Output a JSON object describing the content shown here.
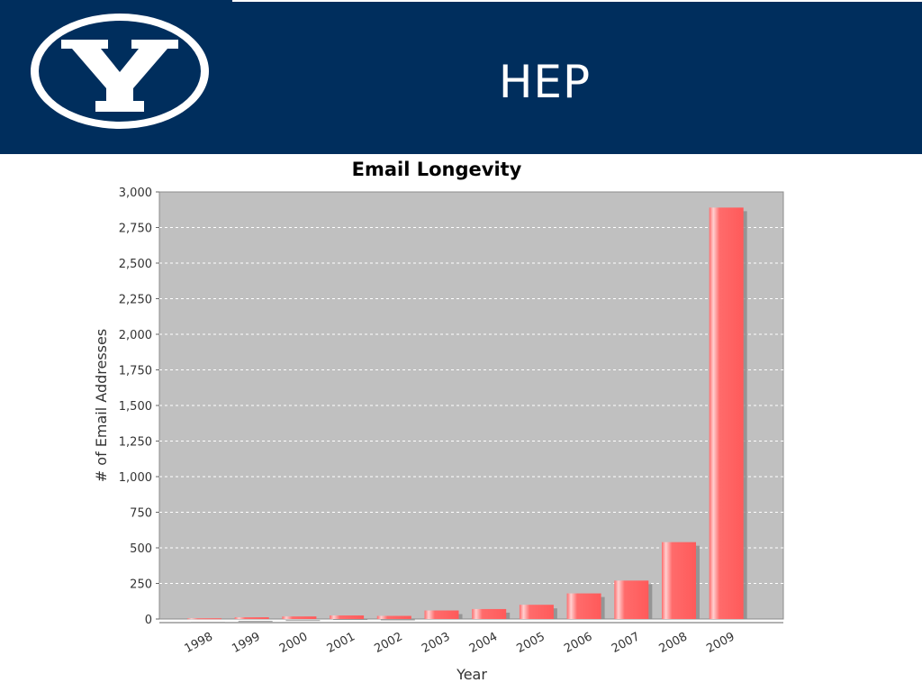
{
  "slide": {
    "title": "HEP",
    "logo_icon": "byu-y-logo-icon"
  },
  "colors": {
    "header_bg": "#002e5d",
    "plot_bg": "#c0c0c0",
    "bar_fill": "#ff6b6b",
    "bar_highlight": "#ffd0d0",
    "bar_shadow": "#8a8a8a"
  },
  "chart_data": {
    "type": "bar",
    "title": "Email Longevity",
    "xlabel": "Year",
    "ylabel": "# of Email Addresses",
    "categories": [
      "1998",
      "1999",
      "2000",
      "2001",
      "2002",
      "2003",
      "2004",
      "2005",
      "2006",
      "2007",
      "2008",
      "2009"
    ],
    "values": [
      5,
      12,
      18,
      25,
      22,
      60,
      70,
      100,
      180,
      270,
      540,
      2890
    ],
    "ylim": [
      0,
      3000
    ],
    "yticks": [
      0,
      250,
      500,
      750,
      1000,
      1250,
      1500,
      1750,
      2000,
      2250,
      2500,
      2750,
      3000
    ],
    "ytick_labels": [
      "0",
      "250",
      "500",
      "750",
      "1,000",
      "1,250",
      "1,500",
      "1,750",
      "2,000",
      "2,250",
      "2,500",
      "2,750",
      "3,000"
    ],
    "grid": true,
    "legend": "none"
  }
}
